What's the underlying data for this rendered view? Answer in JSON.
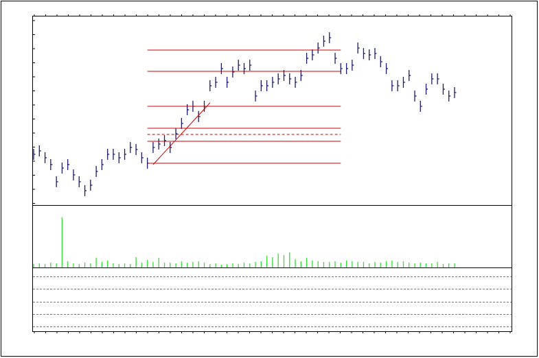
{
  "chart_data": {
    "type": "ohlc",
    "high": [
      82,
      87,
      77,
      67,
      42,
      62,
      67,
      52,
      42,
      29,
      37,
      57,
      67,
      82,
      82,
      77,
      82,
      92,
      89,
      77,
      69,
      92,
      97,
      102,
      92,
      112,
      127,
      147,
      152,
      137,
      152,
      182,
      187,
      207,
      187,
      202,
      212,
      207,
      212,
      167,
      182,
      182,
      187,
      192,
      197,
      192,
      187,
      197,
      222,
      227,
      237,
      247,
      252,
      222,
      207,
      207,
      212,
      237,
      229,
      227,
      229,
      217,
      207,
      182,
      182,
      187,
      197,
      167,
      152,
      177,
      192,
      192,
      177,
      167,
      172
    ],
    "low": [
      66,
      71,
      61,
      51,
      26,
      46,
      51,
      36,
      26,
      13,
      21,
      41,
      51,
      66,
      66,
      61,
      66,
      76,
      73,
      61,
      53,
      76,
      81,
      86,
      76,
      96,
      111,
      131,
      136,
      121,
      136,
      166,
      171,
      191,
      171,
      186,
      196,
      191,
      196,
      151,
      166,
      166,
      171,
      176,
      181,
      176,
      171,
      181,
      206,
      211,
      221,
      231,
      236,
      206,
      191,
      191,
      196,
      221,
      213,
      211,
      213,
      201,
      191,
      166,
      166,
      171,
      181,
      151,
      136,
      161,
      176,
      176,
      161,
      151,
      156
    ],
    "close": [
      74,
      79,
      69,
      59,
      34,
      54,
      59,
      44,
      34,
      21,
      29,
      49,
      59,
      74,
      74,
      69,
      74,
      84,
      81,
      69,
      61,
      84,
      89,
      94,
      84,
      104,
      119,
      139,
      144,
      129,
      144,
      174,
      179,
      199,
      179,
      194,
      204,
      199,
      204,
      159,
      174,
      174,
      179,
      184,
      189,
      184,
      179,
      189,
      214,
      219,
      229,
      239,
      244,
      214,
      199,
      199,
      204,
      229,
      221,
      219,
      221,
      209,
      199,
      174,
      174,
      179,
      189,
      159,
      144,
      169,
      184,
      184,
      169,
      159,
      164
    ],
    "bar_color": "#1a1a6e",
    "ylim": [
      0,
      276
    ],
    "levels": [
      226,
      195,
      144,
      112,
      103,
      93,
      61
    ],
    "dashed_levels": [
      103
    ],
    "level_range": [
      20,
      54
    ],
    "level_color": "#cc0000",
    "trendline": [
      [
        21,
        59
      ],
      [
        31,
        149
      ]
    ],
    "volume": {
      "values": [
        5,
        6,
        5,
        7,
        6,
        73,
        9,
        6,
        5,
        7,
        6,
        14,
        8,
        10,
        6,
        5,
        6,
        5,
        15,
        7,
        11,
        8,
        14,
        7,
        7,
        6,
        9,
        7,
        8,
        9,
        7,
        5,
        6,
        4,
        5,
        6,
        5,
        7,
        6,
        8,
        9,
        17,
        15,
        20,
        18,
        22,
        12,
        9,
        14,
        10,
        9,
        8,
        8,
        9,
        7,
        10,
        9,
        8,
        8,
        6,
        8,
        7,
        9,
        10,
        8,
        9,
        7,
        6,
        7,
        6,
        6,
        8,
        5,
        6,
        6
      ],
      "color": "#33dd33",
      "ylim": [
        0,
        91
      ]
    }
  }
}
